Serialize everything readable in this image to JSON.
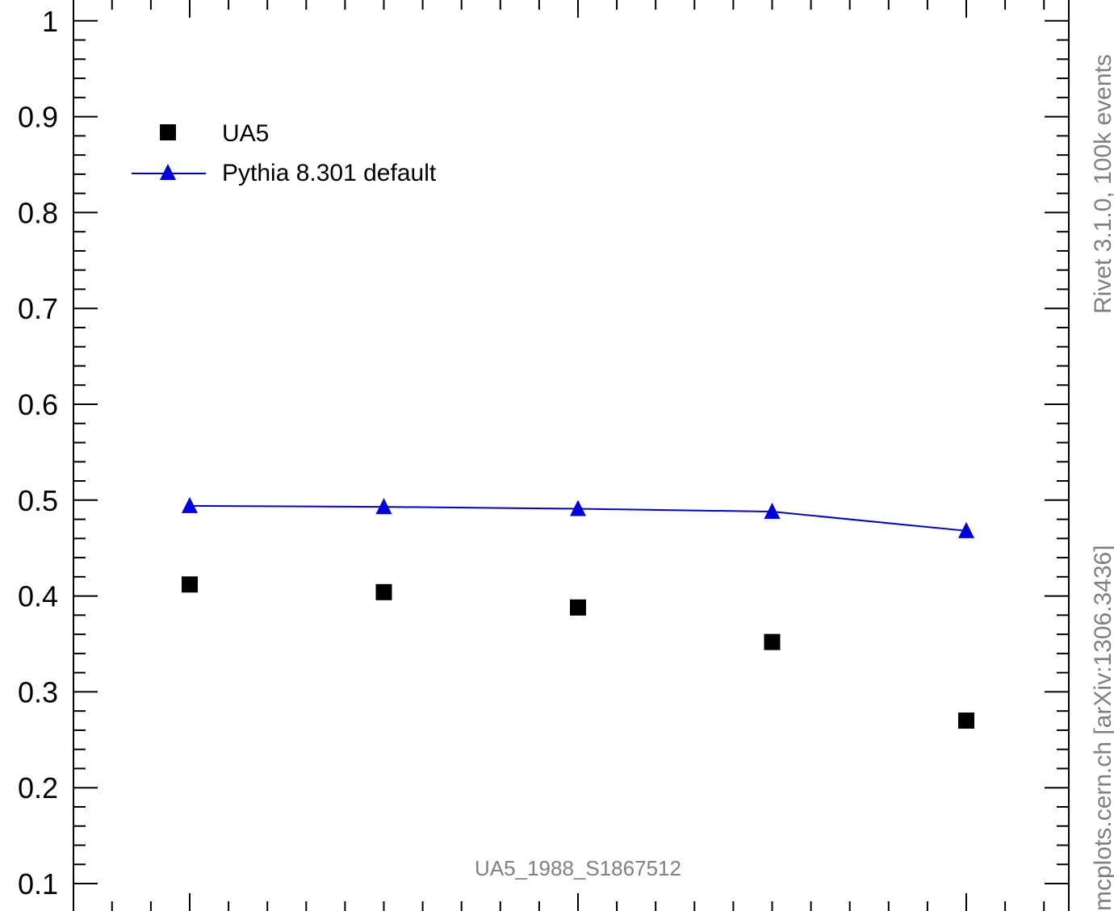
{
  "chart_data": {
    "type": "scatter",
    "analysis_id": "UA5_1988_S1867512",
    "side_label_top": "Rivet 3.1.0,  100k events",
    "side_label_bottom": "mcplots.cern.ch [arXiv:1306.3436]",
    "ylim": [
      0.1,
      1.0
    ],
    "yticks": [
      "0.1",
      "0.2",
      "0.3",
      "0.4",
      "0.5",
      "0.6",
      "0.7",
      "0.8",
      "0.9",
      "1"
    ],
    "x": [
      1,
      2,
      3,
      4,
      5
    ],
    "xlim": [
      0.4,
      5.4
    ],
    "legend_position": "top-left",
    "series": [
      {
        "name": "UA5",
        "marker": "square",
        "color": "#000000",
        "values": [
          0.412,
          0.404,
          0.388,
          0.352,
          0.27
        ]
      },
      {
        "name": "Pythia 8.301 default",
        "marker": "triangle",
        "line": true,
        "color": "#0000dd",
        "values": [
          0.494,
          0.493,
          0.491,
          0.488,
          0.468
        ]
      }
    ]
  }
}
